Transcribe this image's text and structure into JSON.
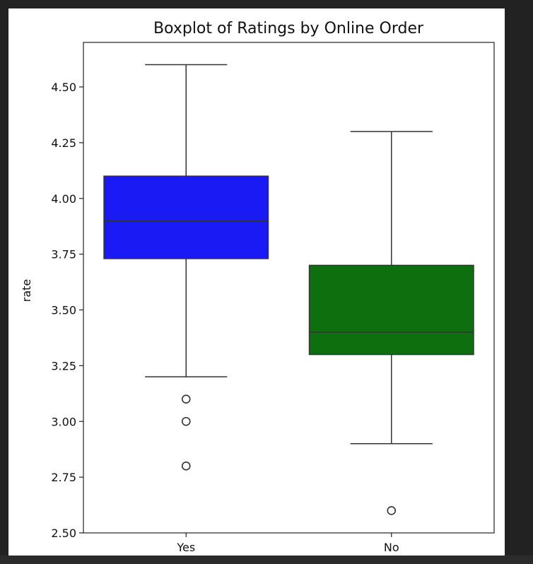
{
  "chart_data": {
    "type": "boxplot",
    "title": "Boxplot of Ratings by Online Order",
    "xlabel": "",
    "ylabel": "rate",
    "ylim": [
      2.5,
      4.65
    ],
    "yticks": [
      "2.50",
      "2.75",
      "3.00",
      "3.25",
      "3.50",
      "3.75",
      "4.00",
      "4.25",
      "4.50"
    ],
    "grid": false,
    "categories": [
      "Yes",
      "No"
    ],
    "boxes": [
      {
        "category": "Yes",
        "color": "#1a1af5",
        "whisker_low": 3.2,
        "q1": 3.73,
        "median": 3.9,
        "q3": 4.1,
        "whisker_high": 4.6,
        "outliers": [
          3.1,
          3.0,
          2.8
        ]
      },
      {
        "category": "No",
        "color": "#0e6f0e",
        "whisker_low": 2.9,
        "q1": 3.3,
        "median": 3.4,
        "q3": 3.7,
        "whisker_high": 4.3,
        "outliers": [
          2.6
        ]
      }
    ]
  }
}
